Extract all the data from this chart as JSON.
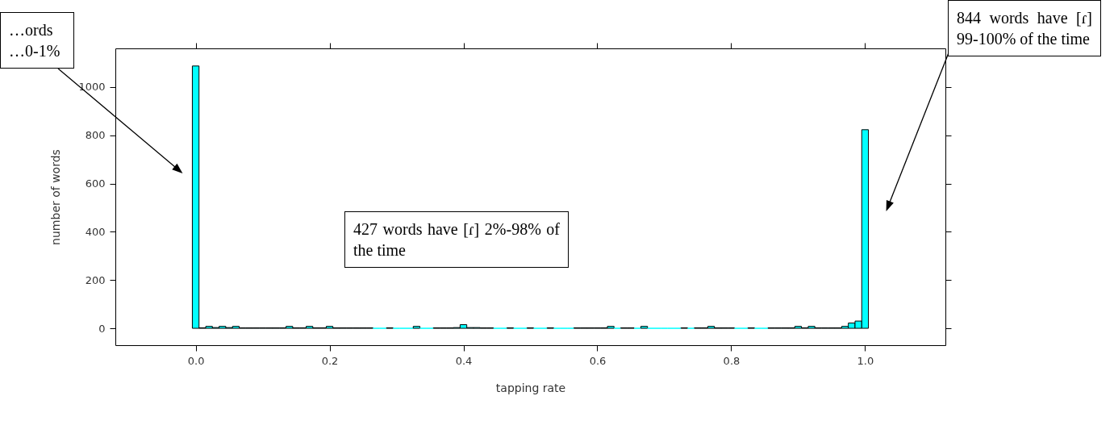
{
  "chart_data": {
    "type": "histogram",
    "xlabel": "tapping rate",
    "ylabel": "number of words",
    "bins": [
      -0.005,
      0.005,
      0.015,
      0.025,
      0.035,
      0.045,
      0.055,
      0.065,
      0.075,
      0.085,
      0.095,
      0.105,
      0.115,
      0.125,
      0.135,
      0.145,
      0.155,
      0.165,
      0.175,
      0.185,
      0.195,
      0.205,
      0.215,
      0.225,
      0.235,
      0.245,
      0.255,
      0.265,
      0.275,
      0.285,
      0.295,
      0.305,
      0.315,
      0.325,
      0.335,
      0.345,
      0.355,
      0.365,
      0.375,
      0.385,
      0.395,
      0.405,
      0.415,
      0.425,
      0.435,
      0.445,
      0.455,
      0.465,
      0.475,
      0.485,
      0.495,
      0.505,
      0.515,
      0.525,
      0.535,
      0.545,
      0.555,
      0.565,
      0.575,
      0.585,
      0.595,
      0.605,
      0.615,
      0.625,
      0.635,
      0.645,
      0.655,
      0.665,
      0.675,
      0.685,
      0.695,
      0.705,
      0.715,
      0.725,
      0.735,
      0.745,
      0.755,
      0.765,
      0.775,
      0.785,
      0.795,
      0.805,
      0.815,
      0.825,
      0.835,
      0.845,
      0.855,
      0.865,
      0.875,
      0.885,
      0.895,
      0.905,
      0.915,
      0.925,
      0.935,
      0.945,
      0.955,
      0.965,
      0.975,
      0.985,
      0.995,
      1.005
    ],
    "values": [
      1087,
      2,
      8,
      3,
      8,
      3,
      8,
      2,
      2,
      2,
      2,
      2,
      2,
      2,
      8,
      2,
      2,
      8,
      2,
      2,
      8,
      2,
      2,
      2,
      2,
      2,
      2,
      0,
      0,
      2,
      0,
      0,
      0,
      8,
      0,
      0,
      2,
      2,
      2,
      3,
      15,
      3,
      3,
      2,
      2,
      0,
      0,
      2,
      0,
      0,
      2,
      0,
      0,
      2,
      0,
      0,
      0,
      2,
      2,
      2,
      2,
      2,
      8,
      0,
      2,
      2,
      0,
      8,
      0,
      0,
      0,
      0,
      0,
      2,
      0,
      2,
      2,
      8,
      2,
      2,
      2,
      0,
      0,
      2,
      0,
      0,
      2,
      2,
      2,
      2,
      8,
      2,
      8,
      2,
      2,
      2,
      2,
      8,
      22,
      30,
      823
    ],
    "color": "#00ffff",
    "xlim": [
      -0.12,
      1.12
    ],
    "xticks": [
      {
        "value": 0,
        "label": "0.0"
      },
      0.2,
      0.4,
      0.6,
      0.8,
      {
        "value": 1,
        "label": "1.0"
      }
    ],
    "ylim": [
      -70,
      1160
    ],
    "yticks": [
      0,
      200,
      400,
      600,
      800,
      1000
    ],
    "grid": false,
    "annotations": [
      "…ords …0-1%",
      "427 words have [ɾ] 2%-98% of the time",
      "844 words have [ɾ] 99-100% of the time"
    ]
  }
}
